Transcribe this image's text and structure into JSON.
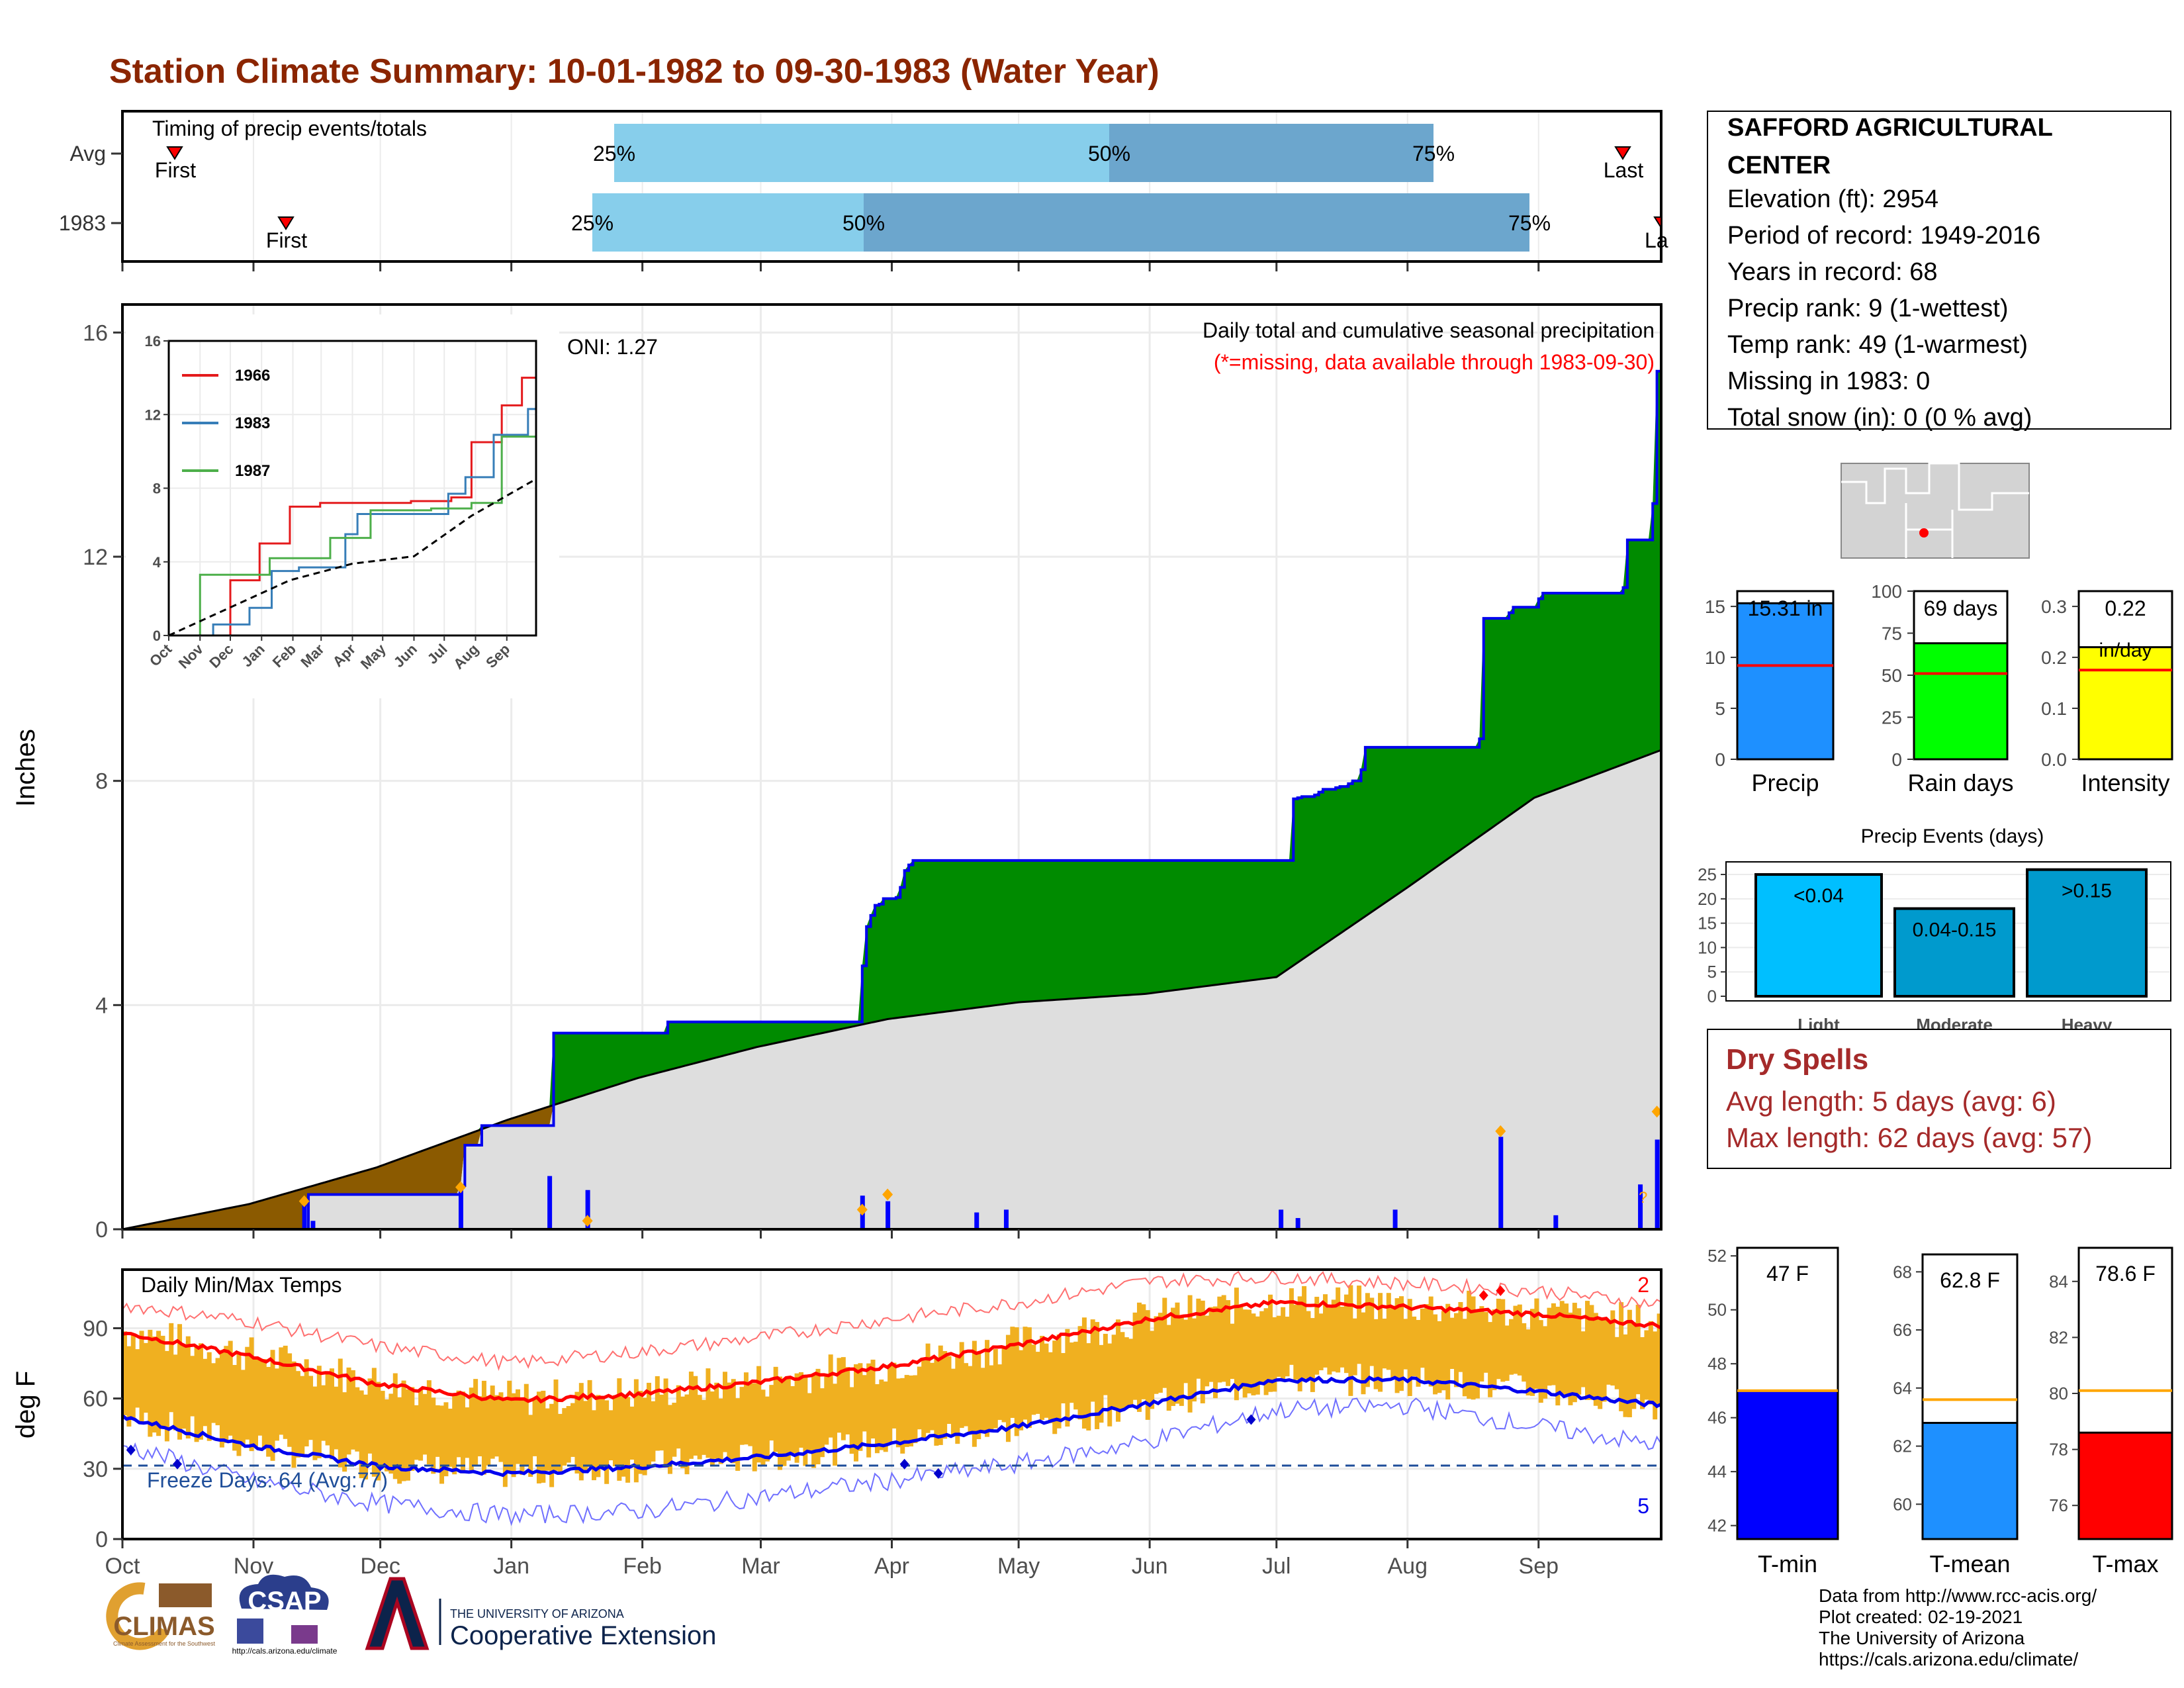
{
  "title": "Station Climate Summary: 10-01-1982 to 09-30-1983 (Water Year)",
  "colors": {
    "title": "#8b2500",
    "green": "#008b00",
    "brown": "#8b5a00",
    "gray_area": "#dedede",
    "blue_line": "#0000ee",
    "bar_light": "#87ceeb",
    "bar_dark": "#6ca6cd",
    "precip_blue": "#1e90ff",
    "rain_green": "#00ff00",
    "intensity_yellow": "#ffff00",
    "events_light": "#00bfff",
    "events_mod": "#009acd",
    "events_heavy": "#009acd",
    "orange": "#ffa500",
    "temp_fill": "#f0b020",
    "red": "#ff0000",
    "dry_spell": "#a52a2a"
  },
  "timing": {
    "title": "Timing of precip events/totals",
    "rows": [
      {
        "label": "Avg",
        "first": "First",
        "last": "Last",
        "p25": "25%",
        "p50": "50%",
        "p75": "75%"
      },
      {
        "label": "1983",
        "first": "First",
        "last": "La",
        "p25": "25%",
        "p50": "50%",
        "p75": "75%"
      }
    ]
  },
  "station": {
    "name_line1": "SAFFORD AGRICULTURAL",
    "name_line2": "CENTER",
    "lines": [
      "Elevation (ft): 2954",
      "Period of record: 1949-2016",
      "Years in record: 68",
      "Precip rank: 9 (1-wettest)",
      "Temp rank: 49 (1-warmest)",
      "Missing in 1983: 0",
      "Total snow (in): 0 (0 % avg)"
    ]
  },
  "main_chart": {
    "ylabel": "Inches",
    "caption1": "Daily total and cumulative seasonal precipitation",
    "caption2": "(*=missing, data available through 1983-09-30)",
    "oni": "ONI: 1.27",
    "y_ticks": [
      "0",
      "4",
      "8",
      "12",
      "16"
    ],
    "missing_marker": "?"
  },
  "inset": {
    "y_ticks": [
      "0",
      "4",
      "8",
      "12",
      "16"
    ],
    "x_ticks": [
      "Oct",
      "Nov",
      "Dec",
      "Jan",
      "Feb",
      "Mar",
      "Apr",
      "May",
      "Jun",
      "Jul",
      "Aug",
      "Sep"
    ],
    "legend": [
      "1966",
      "1983",
      "1987"
    ]
  },
  "mini_bars": {
    "precip": {
      "label": "Precip",
      "value_text": "15.31 in",
      "ticks": [
        "0",
        "5",
        "10",
        "15"
      ]
    },
    "rain_days": {
      "label": "Rain days",
      "value_text": "69 days",
      "ticks": [
        "0",
        "25",
        "50",
        "75",
        "100"
      ]
    },
    "intensity": {
      "label": "Intensity",
      "value_text": "0.22",
      "value_text2": "in/day",
      "ticks": [
        "0.0",
        "0.1",
        "0.2",
        "0.3"
      ]
    }
  },
  "events": {
    "title": "Precip Events (days)",
    "ticks": [
      "0",
      "5",
      "10",
      "15",
      "20",
      "25"
    ],
    "bars": [
      {
        "label": "Light",
        "bin": "<0.04"
      },
      {
        "label": "Moderate",
        "bin": "0.04-0.15"
      },
      {
        "label": "Heavy",
        "bin": ">0.15"
      }
    ]
  },
  "dry_spells": {
    "title": "Dry Spells",
    "avg": "Avg length: 5 days (avg: 6)",
    "max": "Max length: 62 days (avg: 57)"
  },
  "temp_chart": {
    "title": "Daily Min/Max Temps",
    "ylabel": "deg F",
    "y_ticks": [
      "0",
      "30",
      "60",
      "90"
    ],
    "x_ticks": [
      "Oct",
      "Nov",
      "Dec",
      "Jan",
      "Feb",
      "Mar",
      "Apr",
      "May",
      "Jun",
      "Jul",
      "Aug",
      "Sep"
    ],
    "freeze": "Freeze Days: 64 (Avg:77)",
    "record_high_count": "2",
    "record_low_count": "5"
  },
  "temp_bars": {
    "tmin": {
      "label": "T-min",
      "value_text": "47 F",
      "ticks": [
        "42",
        "44",
        "46",
        "48",
        "50",
        "52"
      ]
    },
    "tmean": {
      "label": "T-mean",
      "value_text": "62.8 F",
      "ticks": [
        "60",
        "62",
        "64",
        "66",
        "68"
      ]
    },
    "tmax": {
      "label": "T-max",
      "value_text": "78.6 F",
      "ticks": [
        "76",
        "78",
        "80",
        "82",
        "84"
      ]
    }
  },
  "footer": {
    "lines": [
      "Data from http://www.rcc-acis.org/",
      "Plot created: 02-19-2021",
      "The University of Arizona",
      "https://cals.arizona.edu/climate/"
    ],
    "climas": "CLIMAS",
    "climas_sub": "Climate Assessment for the Southwest",
    "csap": "CSAP",
    "csap_sub": "http://cals.arizona.edu/climate",
    "ua_line1": "THE UNIVERSITY OF ARIZONA",
    "ua_line2": "Cooperative Extension"
  },
  "chart_data": [
    {
      "type": "area",
      "name": "Daily total and cumulative seasonal precipitation",
      "ylabel": "Inches",
      "ylim": [
        0,
        16.5
      ],
      "x_unit": "day of water year (Oct 1 = 0)",
      "cumulative_1983": {
        "x": [
          0,
          43,
          44,
          80,
          81,
          84,
          85,
          101,
          102,
          128,
          129,
          137,
          138,
          139,
          140,
          174,
          175,
          176,
          177,
          178,
          179,
          180,
          183,
          184,
          185,
          186,
          187,
          277,
          278,
          279,
          282,
          283,
          284,
          287,
          288,
          290,
          291,
          293,
          294,
          321,
          322,
          328,
          329,
          335,
          336,
          355,
          356,
          362,
          363
        ],
        "y": [
          0,
          0,
          0.62,
          0.78,
          1.5,
          1.5,
          1.85,
          1.85,
          3.5,
          3.5,
          3.7,
          3.7,
          3.7,
          3.7,
          3.7,
          3.7,
          4.7,
          5.4,
          5.6,
          5.78,
          5.8,
          5.9,
          5.92,
          6.1,
          6.4,
          6.5,
          6.58,
          7.68,
          7.7,
          7.72,
          7.75,
          7.8,
          7.85,
          7.88,
          7.9,
          7.95,
          8.0,
          8.2,
          8.6,
          8.75,
          10.9,
          11.0,
          11.1,
          11.25,
          11.35,
          11.45,
          12.3,
          12.95,
          15.31
        ]
      },
      "average_cumulative": {
        "x": [
          0,
          30,
          60,
          91,
          122,
          150,
          181,
          212,
          242,
          273,
          304,
          334,
          364
        ],
        "y": [
          0,
          0.45,
          1.1,
          1.95,
          2.7,
          3.25,
          3.75,
          4.05,
          4.2,
          4.5,
          6.1,
          7.7,
          8.55
        ]
      },
      "daily_precip_notable": {
        "x": [
          43,
          45,
          80,
          101,
          110,
          175,
          181,
          202,
          209,
          274,
          278,
          301,
          326,
          339,
          359,
          363
        ],
        "y": [
          0.5,
          0.15,
          0.75,
          0.95,
          0.7,
          0.6,
          0.5,
          0.3,
          0.35,
          0.35,
          0.2,
          0.35,
          1.65,
          0.25,
          0.8,
          1.6
        ]
      },
      "ytick_labels": [
        "0",
        "4",
        "8",
        "12",
        "16"
      ]
    },
    {
      "type": "line",
      "name": "inset cumulative comparison",
      "ylim": [
        0,
        16
      ],
      "categories": [
        "Oct",
        "Nov",
        "Dec",
        "Jan",
        "Feb",
        "Mar",
        "Apr",
        "May",
        "Jun",
        "Jul",
        "Aug",
        "Sep"
      ],
      "series": [
        {
          "name": "1966",
          "x": [
            0,
            60,
            61,
            90,
            120,
            150,
            240,
            280,
            300,
            330,
            350,
            364
          ],
          "y": [
            0,
            0,
            3,
            5,
            7,
            7.2,
            7.3,
            7.5,
            10.5,
            12.5,
            14,
            15.9
          ]
        },
        {
          "name": "1983",
          "x": [
            0,
            43,
            44,
            80,
            102,
            129,
            175,
            187,
            277,
            294,
            322,
            356,
            364
          ],
          "y": [
            0,
            0,
            0.6,
            1.5,
            3.5,
            3.7,
            5.5,
            6.6,
            7.7,
            8.6,
            10.9,
            12.3,
            15.3
          ]
        },
        {
          "name": "1987",
          "x": [
            0,
            30,
            31,
            100,
            160,
            200,
            260,
            300,
            330,
            364
          ],
          "y": [
            0,
            0,
            3.3,
            4.2,
            5.3,
            6.8,
            6.9,
            7.2,
            10.8,
            11.4
          ]
        },
        {
          "x": [
            0,
            60,
            120,
            182,
            243,
            300,
            364
          ],
          "y": [
            0,
            1.5,
            3,
            3.9,
            4.3,
            6.5,
            8.5
          ]
        }
      ]
    },
    {
      "type": "bar",
      "name": "Precip",
      "values": [
        15.31
      ],
      "average": 9.2,
      "ylim": [
        0,
        16.5
      ]
    },
    {
      "type": "bar",
      "name": "Rain days",
      "values": [
        69
      ],
      "average": 51,
      "ylim": [
        0,
        100
      ]
    },
    {
      "type": "bar",
      "name": "Intensity",
      "values": [
        0.22
      ],
      "average": 0.175,
      "ylim": [
        0,
        0.33
      ]
    },
    {
      "type": "bar",
      "title": "Precip Events (days)",
      "categories": [
        "Light",
        "Moderate",
        "Heavy"
      ],
      "values": [
        25,
        18,
        26
      ],
      "ylim": [
        0,
        26.5
      ]
    },
    {
      "type": "line",
      "name": "Daily Min/Max Temps",
      "ylabel": "deg F",
      "ylim": [
        0,
        115
      ],
      "freeze_line": 32,
      "series": [
        {
          "name": "avg_max",
          "x": [
            0,
            30,
            61,
            92,
            123,
            151,
            182,
            212,
            243,
            273,
            304,
            335,
            364
          ],
          "y": [
            88,
            78,
            66,
            59,
            62,
            67,
            74,
            83,
            94,
            101,
            99,
            96,
            91
          ]
        },
        {
          "name": "avg_min",
          "x": [
            0,
            30,
            61,
            92,
            123,
            151,
            182,
            212,
            243,
            273,
            304,
            335,
            364
          ],
          "y": [
            52,
            40,
            31,
            28,
            31,
            35,
            41,
            48,
            58,
            68,
            68,
            63,
            57
          ]
        },
        {
          "name": "record_max",
          "x": [
            0,
            30,
            61,
            92,
            123,
            151,
            182,
            212,
            243,
            273,
            304,
            335,
            364
          ],
          "y": [
            100,
            93,
            82,
            75,
            80,
            86,
            94,
            101,
            110,
            112,
            109,
            106,
            100
          ]
        },
        {
          "name": "record_min",
          "x": [
            0,
            30,
            61,
            92,
            123,
            151,
            182,
            212,
            243,
            273,
            304,
            335,
            364
          ],
          "y": [
            40,
            25,
            15,
            10,
            12,
            18,
            25,
            32,
            42,
            55,
            57,
            48,
            40
          ]
        }
      ]
    },
    {
      "type": "bar",
      "name": "T-min",
      "values": [
        47
      ],
      "average": 47.0,
      "ylim": [
        41.5,
        52.3
      ]
    },
    {
      "type": "bar",
      "name": "T-mean",
      "values": [
        62.8
      ],
      "average": 63.6,
      "ylim": [
        58.8,
        68.6
      ]
    },
    {
      "type": "bar",
      "name": "T-max",
      "values": [
        78.6
      ],
      "average": 80.1,
      "ylim": [
        74.8,
        85.2
      ]
    }
  ]
}
